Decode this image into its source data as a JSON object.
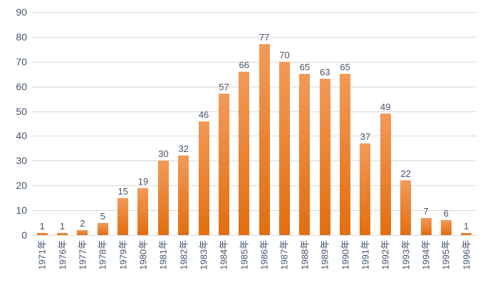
{
  "chart_data": {
    "type": "bar",
    "title": "",
    "xlabel": "",
    "ylabel": "",
    "categories": [
      "1971年",
      "1976年",
      "1977年",
      "1978年",
      "1979年",
      "1980年",
      "1981年",
      "1982年",
      "1983年",
      "1984年",
      "1985年",
      "1986年",
      "1987年",
      "1988年",
      "1989年",
      "1990年",
      "1991年",
      "1992年",
      "1993年",
      "1994年",
      "1995年",
      "1996年"
    ],
    "values": [
      1,
      1,
      2,
      5,
      15,
      19,
      30,
      32,
      46,
      57,
      66,
      77,
      70,
      65,
      63,
      65,
      37,
      49,
      22,
      7,
      6,
      1
    ],
    "data_labels_visible": true,
    "ylim": [
      0,
      90
    ],
    "ytick_step": 10,
    "ytick_labels": [
      "0",
      "10",
      "20",
      "30",
      "40",
      "50",
      "60",
      "70",
      "80",
      "90"
    ],
    "grid": true,
    "legend_position": "none",
    "colors": {
      "bar_base": "#ED7D31",
      "bar_gradient_top": "#F29A58",
      "bar_gradient_bottom": "#E26E10",
      "gridline": "#D9D9D9",
      "text": "#44546A",
      "background": "#FFFFFF"
    }
  }
}
